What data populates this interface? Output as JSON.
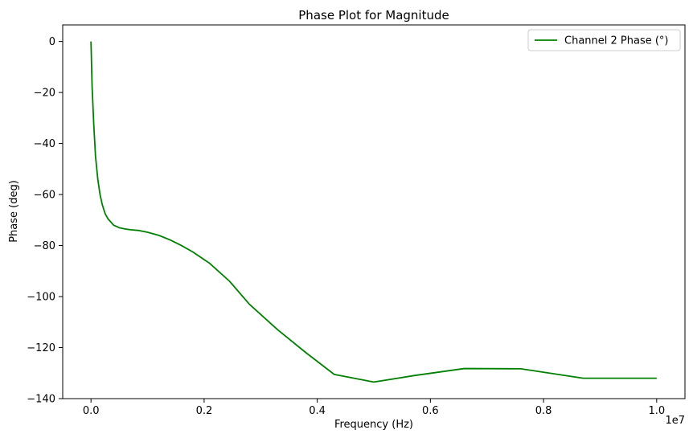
{
  "chart_data": {
    "type": "line",
    "title": "Phase Plot for Magnitude",
    "xlabel": "Frequency (Hz)",
    "ylabel": "Phase (deg)",
    "x_offset_label": "1e7",
    "xlim": [
      -0.05,
      1.05
    ],
    "ylim": [
      -140,
      6.5
    ],
    "xticks": [
      0.0,
      0.2,
      0.4,
      0.6,
      0.8,
      1.0
    ],
    "xtick_labels": [
      "0.0",
      "0.2",
      "0.4",
      "0.6",
      "0.8",
      "1.0"
    ],
    "yticks": [
      0,
      -20,
      -40,
      -60,
      -80,
      -100,
      -120,
      -140
    ],
    "ytick_labels": [
      "0",
      "−20",
      "−40",
      "−60",
      "−80",
      "−100",
      "−120",
      "−140"
    ],
    "grid": false,
    "legend_position": "top-right",
    "series": [
      {
        "name": "Channel 2 Phase (°)",
        "color": "#008000",
        "x": [
          0.0,
          0.002,
          0.005,
          0.008,
          0.012,
          0.016,
          0.02,
          0.025,
          0.03,
          0.04,
          0.05,
          0.06,
          0.07,
          0.085,
          0.1,
          0.12,
          0.14,
          0.16,
          0.18,
          0.21,
          0.245,
          0.28,
          0.33,
          0.38,
          0.43,
          0.5,
          0.57,
          0.66,
          0.76,
          0.87,
          1.0
        ],
        "y": [
          0,
          -18,
          -33,
          -45,
          -54,
          -60,
          -64,
          -67.5,
          -69.5,
          -72,
          -73,
          -73.5,
          -73.8,
          -74.1,
          -74.8,
          -76,
          -77.8,
          -80,
          -82.5,
          -87,
          -94,
          -103,
          -113,
          -122,
          -130.5,
          -133.5,
          -131,
          -128.2,
          -128.3,
          -132,
          -132
        ]
      }
    ]
  }
}
